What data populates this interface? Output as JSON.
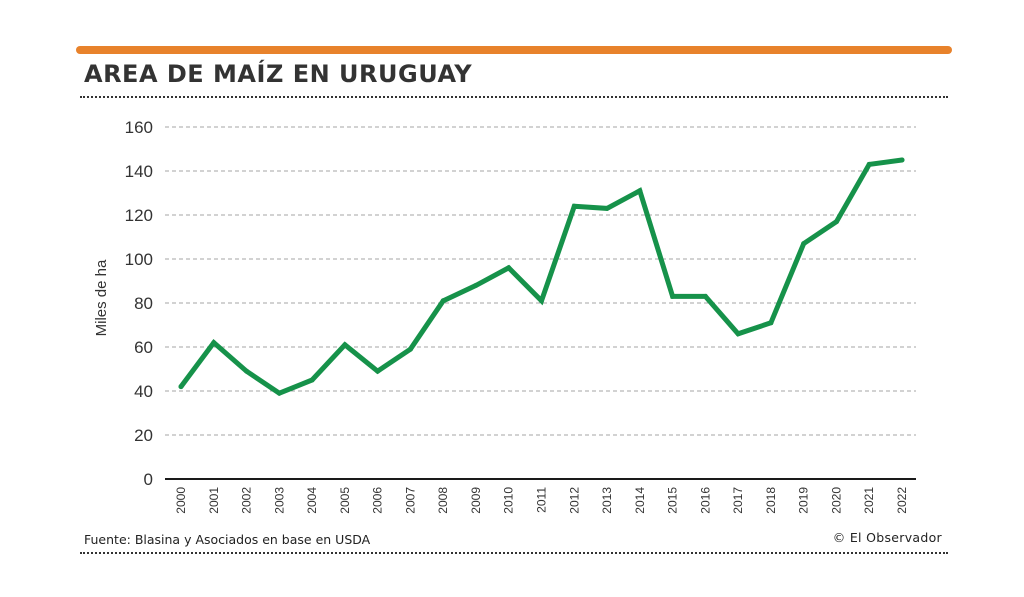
{
  "title": "AREA DE MAÍZ EN URUGUAY",
  "source": "Fuente: Blasina y Asociados en base en USDA",
  "credit": "© El Observador",
  "colors": {
    "accent": "#e8822b",
    "line": "#16924a",
    "grid": "#a6a6a6",
    "text": "#333333"
  },
  "chart_data": {
    "type": "line",
    "title": "AREA DE MAÍZ EN URUGUAY",
    "xlabel": "",
    "ylabel": "Miles de ha",
    "ylim": [
      0,
      160
    ],
    "yticks": [
      0,
      20,
      40,
      60,
      80,
      100,
      120,
      140,
      160
    ],
    "grid": true,
    "legend": "none",
    "x": [
      "2000",
      "2001",
      "2002",
      "2003",
      "2004",
      "2005",
      "2006",
      "2007",
      "2008",
      "2009",
      "2010",
      "2011",
      "2012",
      "2013",
      "2014",
      "2015",
      "2016",
      "2017",
      "2018",
      "2019",
      "2020",
      "2021",
      "2022"
    ],
    "series": [
      {
        "values": [
          42,
          62,
          49,
          39,
          45,
          61,
          49,
          59,
          81,
          88,
          96,
          81,
          124,
          123,
          131,
          83,
          83,
          66,
          71,
          107,
          117,
          143,
          145
        ]
      }
    ]
  }
}
